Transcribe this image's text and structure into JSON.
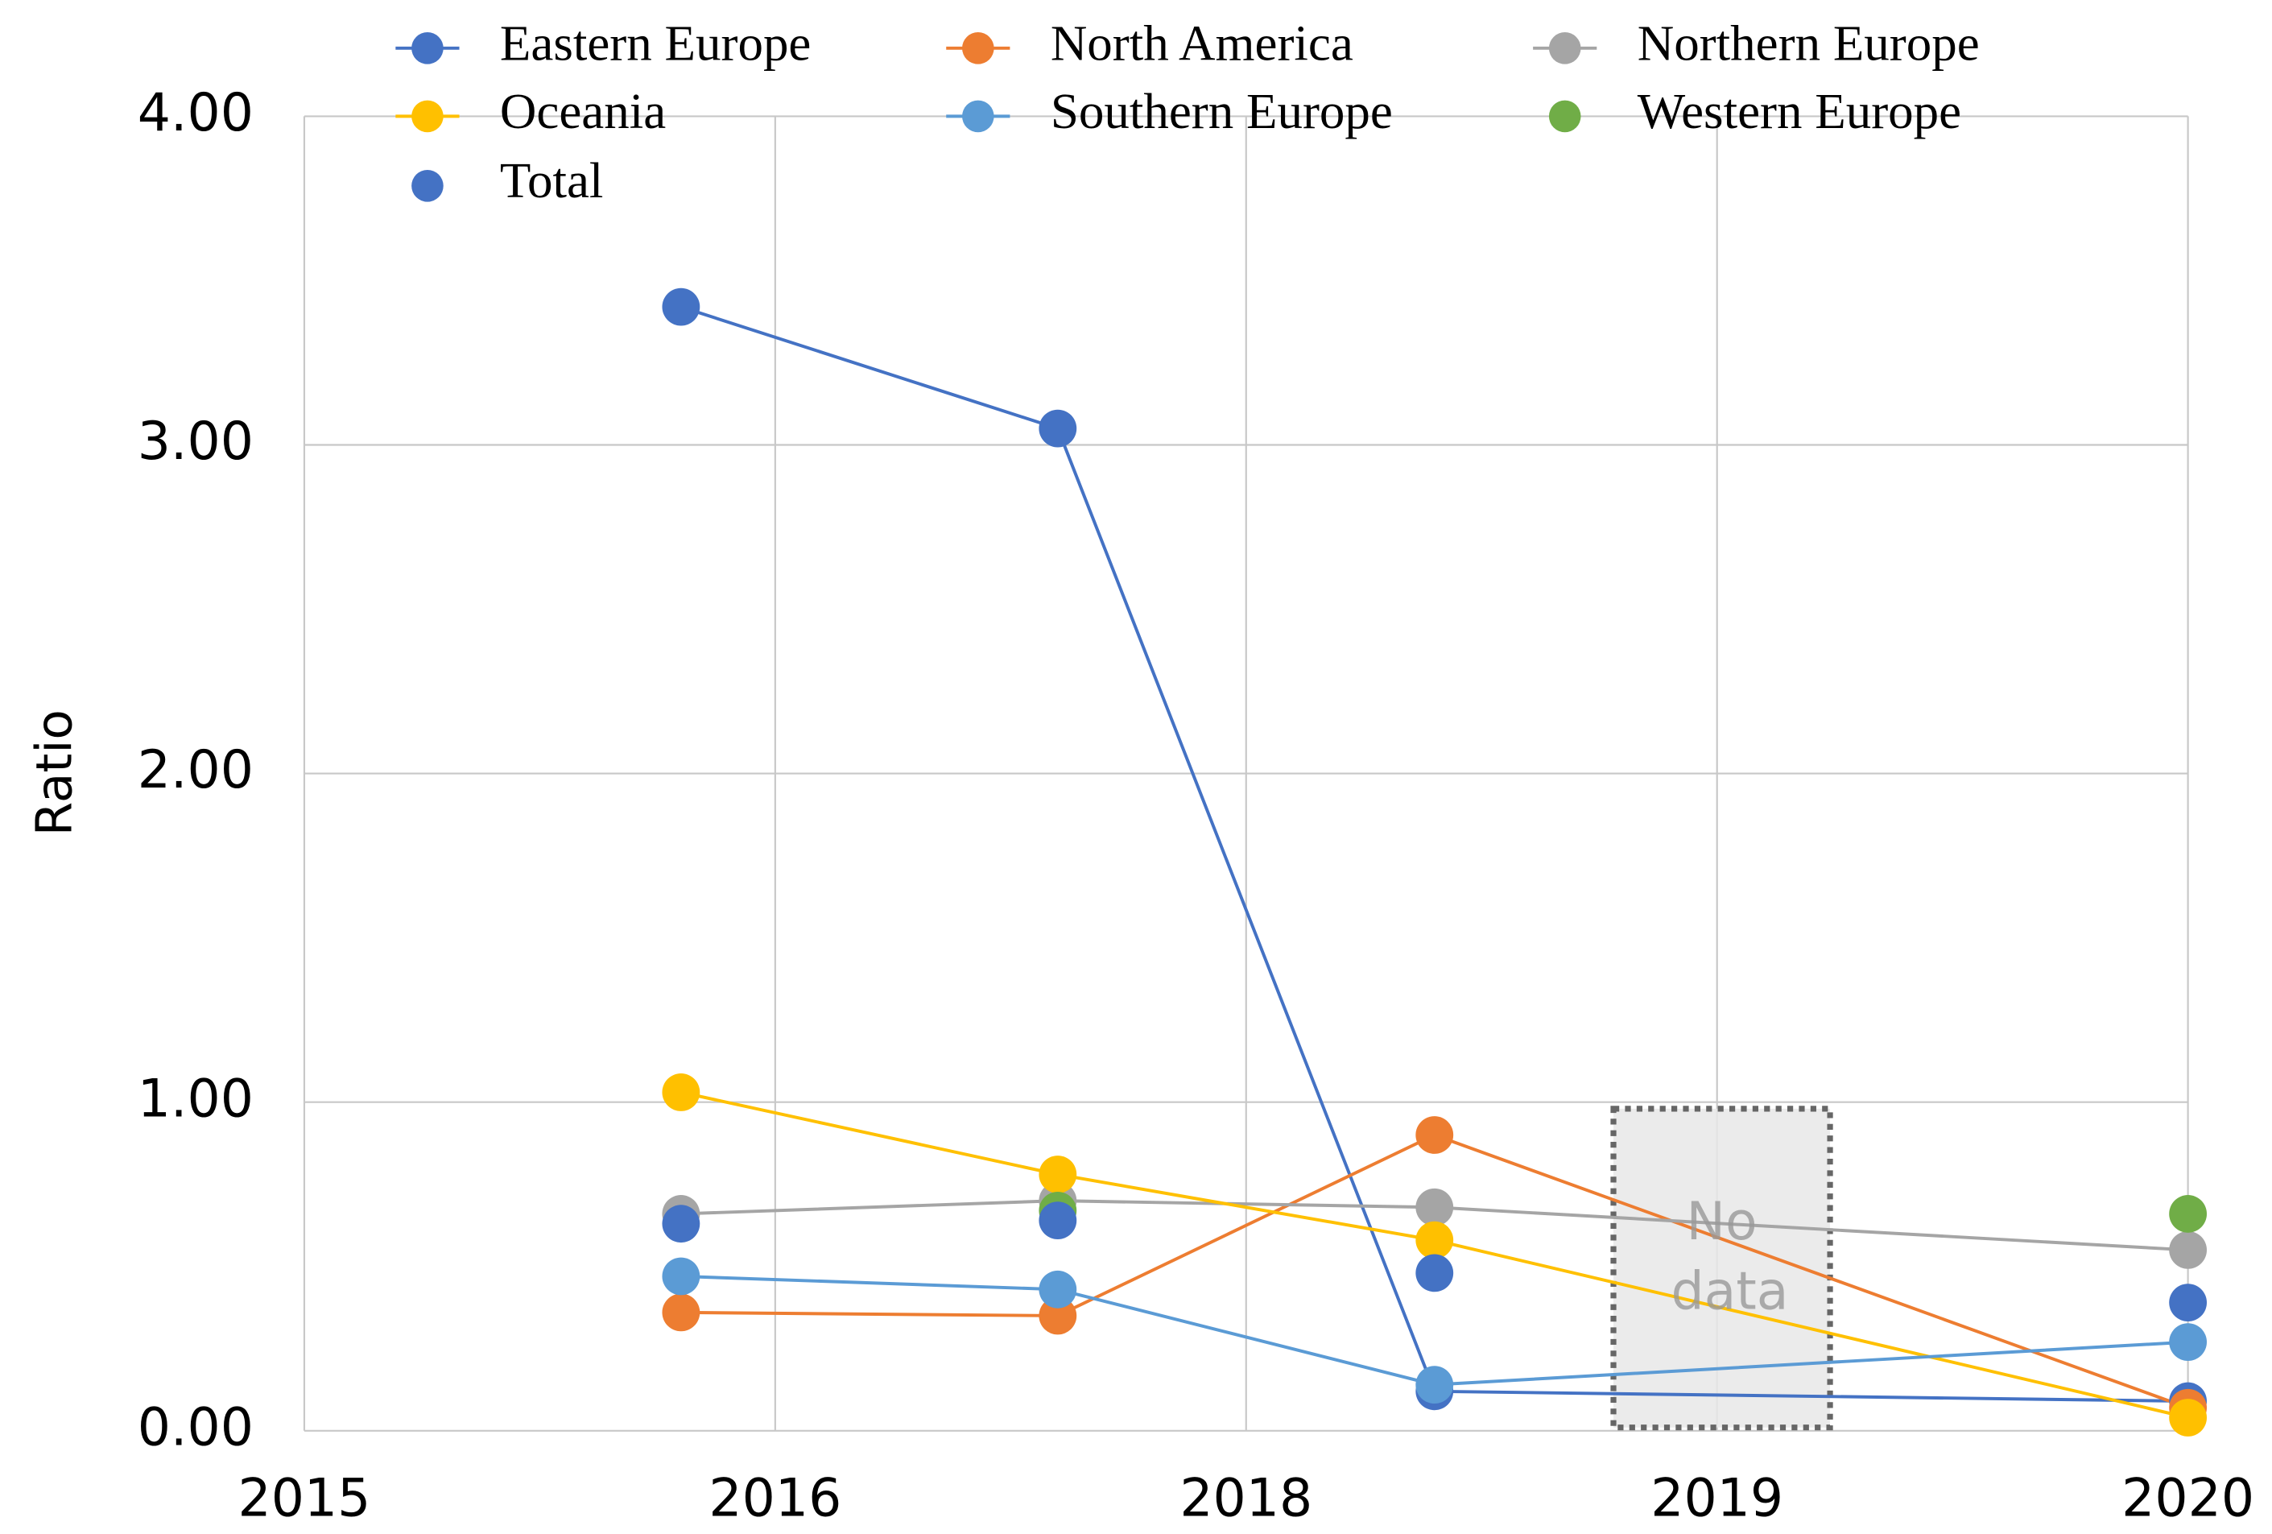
{
  "chart_data": {
    "type": "line",
    "y_label": "Ratio",
    "x": [
      0.8,
      1.6,
      2.4,
      4.0
    ],
    "xlim": [
      0,
      4
    ],
    "xticks": [
      {
        "value": 0,
        "label": "2015"
      },
      {
        "value": 1,
        "label": "2016"
      },
      {
        "value": 2,
        "label": "2018"
      },
      {
        "value": 3,
        "label": "2019"
      },
      {
        "value": 4,
        "label": "2020"
      }
    ],
    "ylim": [
      0,
      4
    ],
    "yticks": [
      {
        "value": 0,
        "label": "0.00"
      },
      {
        "value": 1,
        "label": "1.00"
      },
      {
        "value": 2,
        "label": "2.00"
      },
      {
        "value": 3,
        "label": "3.00"
      },
      {
        "value": 4,
        "label": "4.00"
      }
    ],
    "grid": true,
    "legend": "top",
    "series": [
      {
        "name": "Eastern Europe",
        "color": "#4472c4",
        "line": true,
        "values": [
          3.42,
          3.05,
          0.12,
          0.09
        ]
      },
      {
        "name": "North America",
        "color": "#ed7d31",
        "line": true,
        "values": [
          0.36,
          0.35,
          0.9,
          0.07
        ]
      },
      {
        "name": "Northern Europe",
        "color": "#a5a5a5",
        "line": true,
        "values": [
          0.66,
          0.7,
          0.68,
          0.55
        ]
      },
      {
        "name": "Oceania",
        "color": "#ffc000",
        "line": true,
        "values": [
          1.03,
          0.78,
          0.58,
          0.04
        ]
      },
      {
        "name": "Southern Europe",
        "color": "#5b9bd5",
        "line": true,
        "values": [
          0.47,
          0.43,
          0.14,
          0.27
        ]
      },
      {
        "name": "Western Europe",
        "color": "#70ad47",
        "line": false,
        "values": [
          null,
          0.67,
          null,
          0.66
        ]
      },
      {
        "name": "Total",
        "color": "#4472c4",
        "line": false,
        "values": [
          0.63,
          0.64,
          0.48,
          0.39
        ]
      }
    ],
    "annotation": {
      "text": "No data",
      "x": [
        2.78,
        3.24
      ],
      "y": [
        0.01,
        0.98
      ]
    }
  }
}
